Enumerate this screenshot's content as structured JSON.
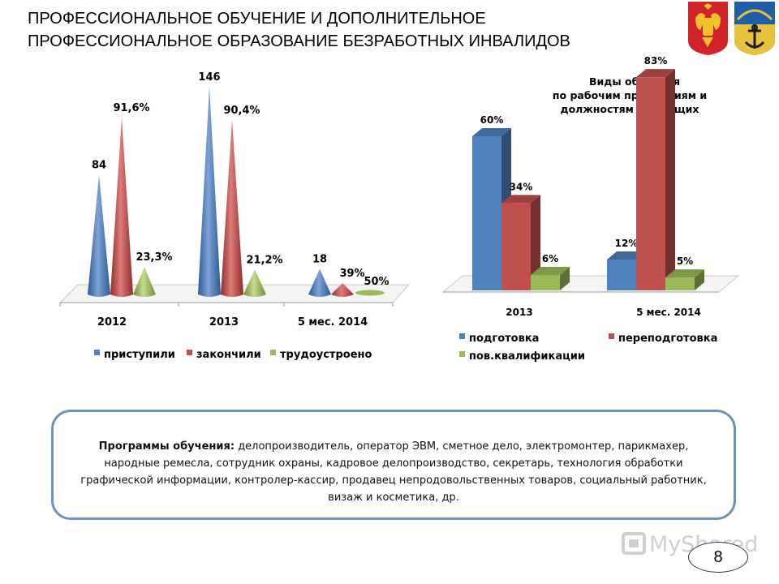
{
  "slide": {
    "title": "ПРОФЕССИОНАЛЬНОЕ ОБУЧЕНИЕ И ДОПОЛНИТЕЛЬНОЕ ПРОФЕССИОНАЛЬНОЕ ОБРАЗОВАНИЕ БЕЗРАБОТНЫХ ИНВАЛИДОВ",
    "page_number": "8",
    "watermark": "MyShared",
    "programs_label": "Программы обучения:",
    "programs_text": "делопроизводитель, оператор ЭВМ, сметное дело, электромонтер, парикмахер, народные ремесла, сотрудник охраны, кадровое делопроизводство, секретарь, технология обработки графической информации, контролер-кассир, продавец непродовольственных товаров, социальный работник, визаж и косметика, др."
  },
  "colors": {
    "blue": "#4f81bd",
    "red": "#c0504d",
    "green": "#9bbb59",
    "box_border": "#6f92bd"
  },
  "icons": [
    "russia-coat-of-arms-icon",
    "murmansk-coat-of-arms-icon",
    "myshared-logo-icon"
  ],
  "chart_data": [
    {
      "type": "bar",
      "shape": "cone",
      "title": "",
      "categories": [
        "2012",
        "2013",
        "5 мес. 2014"
      ],
      "series": [
        {
          "name": "приступили",
          "values": [
            84,
            146,
            18
          ],
          "labels": [
            "84",
            "146",
            "18"
          ],
          "color": "#4f81bd"
        },
        {
          "name": "закончили",
          "values": [
            91.6,
            90.4,
            39
          ],
          "labels": [
            "91,6%",
            "90,4%",
            "39%"
          ],
          "color": "#c0504d"
        },
        {
          "name": "трудоустроено",
          "values": [
            23.3,
            21.2,
            50
          ],
          "labels": [
            "23,3%",
            "21,2%",
            "50%"
          ],
          "color": "#9bbb59"
        }
      ],
      "legend": "bottom"
    },
    {
      "type": "bar",
      "shape": "3d-column",
      "title": "Виды обучения по рабочим профессиям и должностям служащих",
      "categories": [
        "2013",
        "5 мес. 2014"
      ],
      "series": [
        {
          "name": "подготовка",
          "values": [
            60,
            12
          ],
          "labels": [
            "60%",
            "12%"
          ],
          "color": "#4f81bd"
        },
        {
          "name": "переподготовка",
          "values": [
            34,
            83
          ],
          "labels": [
            "34%",
            "83%"
          ],
          "color": "#c0504d"
        },
        {
          "name": "пов.квалификации",
          "values": [
            6,
            5
          ],
          "labels": [
            "6%",
            "5%"
          ],
          "color": "#9bbb59"
        }
      ],
      "ylim": [
        0,
        100
      ],
      "legend": "bottom"
    }
  ]
}
